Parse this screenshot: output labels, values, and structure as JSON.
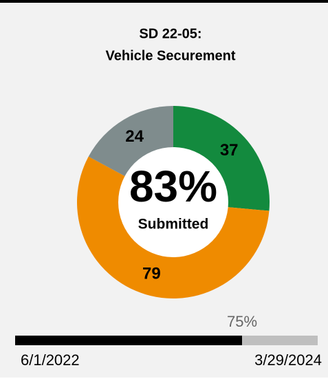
{
  "chart_data": {
    "type": "pie",
    "donut": true,
    "title": [
      "SD 22-05:",
      "Vehicle Securement"
    ],
    "values": [
      37,
      79,
      24
    ],
    "colors": [
      "#138a3e",
      "#ef8b00",
      "#7f8c8d"
    ],
    "center_text": "83%",
    "center_subtext": "Submitted"
  },
  "progress": {
    "value": 75,
    "label": "75%",
    "start": "6/1/2022",
    "end": "3/29/2024"
  }
}
